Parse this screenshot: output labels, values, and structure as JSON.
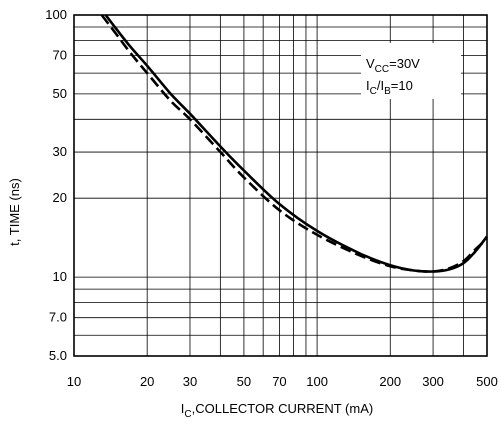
{
  "chart_data": {
    "type": "line",
    "x_scale": "log",
    "y_scale": "log",
    "xlim": [
      10,
      500
    ],
    "ylim": [
      5,
      100
    ],
    "xlabel": {
      "prefix": "I",
      "sub": "C",
      "rest": ",COLLECTOR CURRENT (mA)"
    },
    "ylabel": "t, TIME (ns)",
    "grid": true,
    "x_ticks": [
      {
        "value": 10,
        "label": "10"
      },
      {
        "value": 20,
        "label": "20"
      },
      {
        "value": 30,
        "label": "30"
      },
      {
        "value": 50,
        "label": "50"
      },
      {
        "value": 70,
        "label": "70"
      },
      {
        "value": 100,
        "label": "100"
      },
      {
        "value": 200,
        "label": "200"
      },
      {
        "value": 300,
        "label": "300"
      },
      {
        "value": 500,
        "label": "500"
      }
    ],
    "y_ticks": [
      {
        "value": 5,
        "label": "5.0"
      },
      {
        "value": 7,
        "label": "7.0"
      },
      {
        "value": 10,
        "label": "10"
      },
      {
        "value": 20,
        "label": "20"
      },
      {
        "value": 30,
        "label": "30"
      },
      {
        "value": 50,
        "label": "50"
      },
      {
        "value": 70,
        "label": "70"
      },
      {
        "value": 100,
        "label": "100"
      }
    ],
    "x_grid": [
      10,
      20,
      30,
      40,
      50,
      60,
      70,
      80,
      90,
      100,
      200,
      300,
      400,
      500
    ],
    "y_grid": [
      5,
      6,
      7,
      8,
      9,
      10,
      20,
      30,
      40,
      50,
      60,
      70,
      80,
      90,
      100
    ],
    "annotation": {
      "line1": {
        "prefix": "V",
        "sub": "CC",
        "rest": "=30V"
      },
      "line2": {
        "a": "I",
        "a_sub": "C",
        "mid": "/I",
        "b_sub": "B",
        "rest": "=10"
      }
    },
    "series": [
      {
        "style": "solid",
        "x": [
          13.5,
          15,
          17,
          20,
          25,
          30,
          40,
          50,
          70,
          100,
          150,
          200,
          250,
          300,
          350,
          400,
          450,
          500
        ],
        "y": [
          100,
          88,
          76,
          64,
          50,
          42,
          31.5,
          25.5,
          19,
          15,
          12.3,
          11.1,
          10.6,
          10.5,
          10.7,
          11.3,
          12.6,
          14.3
        ]
      },
      {
        "style": "dashed",
        "x": [
          13,
          15,
          17,
          20,
          25,
          30,
          40,
          50,
          70,
          100,
          150,
          200,
          250,
          300,
          350,
          400,
          450,
          500
        ],
        "y": [
          100,
          84,
          72,
          60,
          47,
          40,
          30,
          24,
          18,
          14.5,
          12.1,
          11.0,
          10.6,
          10.5,
          10.8,
          11.5,
          12.8,
          14.0
        ]
      }
    ]
  }
}
